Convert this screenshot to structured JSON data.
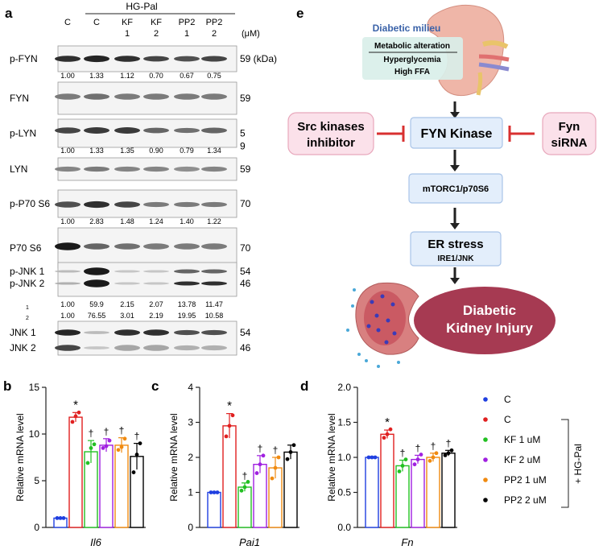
{
  "panels": {
    "a": "a",
    "b": "b",
    "c": "c",
    "d": "d",
    "e": "e"
  },
  "blot": {
    "group_label": "HG-Pal",
    "unit_label": "(μM)",
    "lanes": [
      {
        "l1": "C",
        "l2": ""
      },
      {
        "l1": "C",
        "l2": ""
      },
      {
        "l1": "KF",
        "l2": "1"
      },
      {
        "l1": "KF",
        "l2": "2"
      },
      {
        "l1": "PP2",
        "l2": "1"
      },
      {
        "l1": "PP2",
        "l2": "2"
      }
    ],
    "rows": [
      {
        "label": "p-FYN",
        "mw": "59 (kDa)",
        "vals": [
          "1.00",
          "1.33",
          "1.12",
          "0.70",
          "0.67",
          "0.75"
        ]
      },
      {
        "label": "FYN",
        "mw": "59",
        "vals": []
      },
      {
        "label": "p-LYN",
        "mw": "5",
        "mw2": "9",
        "vals": [
          "1.00",
          "1.33",
          "1.35",
          "0.90",
          "0.79",
          "1.34"
        ]
      },
      {
        "label": "LYN",
        "mw": "59",
        "vals": []
      },
      {
        "label": "p-P70 S6",
        "mw": "70",
        "vals": [
          "1.00",
          "2.83",
          "1.48",
          "1.24",
          "1.40",
          "1.22"
        ]
      },
      {
        "label": "P70 S6",
        "mw": "70",
        "vals": []
      },
      {
        "label": "p-JNK 1",
        "label2": "p-JNK 2",
        "mw": "54",
        "mw2": "46",
        "vals1": [
          "1.00",
          "59.9",
          "2.15",
          "2.07",
          "13.78",
          "11.47"
        ],
        "vals2": [
          "1.00",
          "76.55",
          "3.01",
          "2.19",
          "19.95",
          "10.58"
        ],
        "idx1": "1",
        "idx2": "2"
      },
      {
        "label": "JNK 1",
        "label2": "JNK 2",
        "mw": "54",
        "mw2": "46",
        "vals": []
      }
    ]
  },
  "schematic": {
    "milieu_title": "Diabetic milieu",
    "milieu_items": [
      "Metabolic alteration",
      "Hyperglycemia",
      "High FFA"
    ],
    "src_inhibitor": [
      "Src kinases",
      "inhibitor"
    ],
    "fyn_sirna": [
      "Fyn",
      "siRNA"
    ],
    "fyn_kinase": "FYN Kinase",
    "mtorc": "mTORC1/p70S6",
    "er_stress": "ER stress",
    "ire1": "IRE1/JNK",
    "injury": [
      "Diabetic",
      "Kidney Injury"
    ]
  },
  "legend": {
    "items": [
      {
        "label": "C",
        "color": "#1f3fe0"
      },
      {
        "label": "C",
        "color": "#e02020"
      },
      {
        "label": "KF 1 uM",
        "color": "#22c022"
      },
      {
        "label": "KF 2 uM",
        "color": "#a020e0"
      },
      {
        "label": "PP2 1 uM",
        "color": "#f08a10"
      },
      {
        "label": "PP2 2 uM",
        "color": "#000000"
      }
    ],
    "bracket_label": "+ HG-Pal"
  },
  "chart_data": [
    {
      "type": "bar",
      "panel": "b",
      "xlabel": "Il6",
      "ylabel": "Relative mRNA level",
      "ylim": [
        0,
        15
      ],
      "yticks": [
        0,
        5,
        10,
        15
      ],
      "values": [
        1.0,
        11.8,
        8.1,
        8.8,
        8.8,
        7.6
      ],
      "errors": [
        0.05,
        0.5,
        1.2,
        0.7,
        0.8,
        1.4
      ],
      "points": [
        [
          1,
          1,
          1
        ],
        [
          11.3,
          11.9,
          12.3
        ],
        [
          6.9,
          8.5,
          8.9
        ],
        [
          8.5,
          8.7,
          9.3
        ],
        [
          8.3,
          8.6,
          9.5
        ],
        [
          5.9,
          7.8,
          9.0
        ]
      ],
      "markers": [
        "",
        "*",
        "†",
        "†",
        "†",
        "†"
      ]
    },
    {
      "type": "bar",
      "panel": "c",
      "xlabel": "Pai1",
      "ylabel": "Relative mRNA level",
      "ylim": [
        0,
        4
      ],
      "yticks": [
        0,
        1,
        2,
        3,
        4
      ],
      "values": [
        1.0,
        2.9,
        1.15,
        1.8,
        1.7,
        2.15
      ],
      "errors": [
        0.02,
        0.35,
        0.12,
        0.25,
        0.3,
        0.2
      ],
      "points": [
        [
          1,
          1,
          1
        ],
        [
          2.6,
          2.9,
          3.2
        ],
        [
          1.05,
          1.15,
          1.3
        ],
        [
          1.55,
          1.8,
          2.05
        ],
        [
          1.4,
          1.7,
          2.0
        ],
        [
          1.95,
          2.15,
          2.35
        ]
      ],
      "markers": [
        "",
        "*",
        "†",
        "†",
        "†",
        ""
      ]
    },
    {
      "type": "bar",
      "panel": "d",
      "xlabel": "Fn",
      "ylabel": "Relative mRNA level",
      "ylim": [
        0,
        2.0
      ],
      "yticks": [
        0.0,
        0.5,
        1.0,
        1.5,
        2.0
      ],
      "values": [
        1.0,
        1.33,
        0.88,
        0.97,
        1.0,
        1.06
      ],
      "errors": [
        0.01,
        0.06,
        0.08,
        0.06,
        0.06,
        0.04
      ],
      "points": [
        [
          1,
          1,
          1
        ],
        [
          1.28,
          1.33,
          1.4
        ],
        [
          0.8,
          0.88,
          0.97
        ],
        [
          0.9,
          0.97,
          1.04
        ],
        [
          0.95,
          1.0,
          1.06
        ],
        [
          1.03,
          1.06,
          1.1
        ]
      ],
      "markers": [
        "",
        "*",
        "†",
        "†",
        "†",
        "†"
      ]
    }
  ]
}
